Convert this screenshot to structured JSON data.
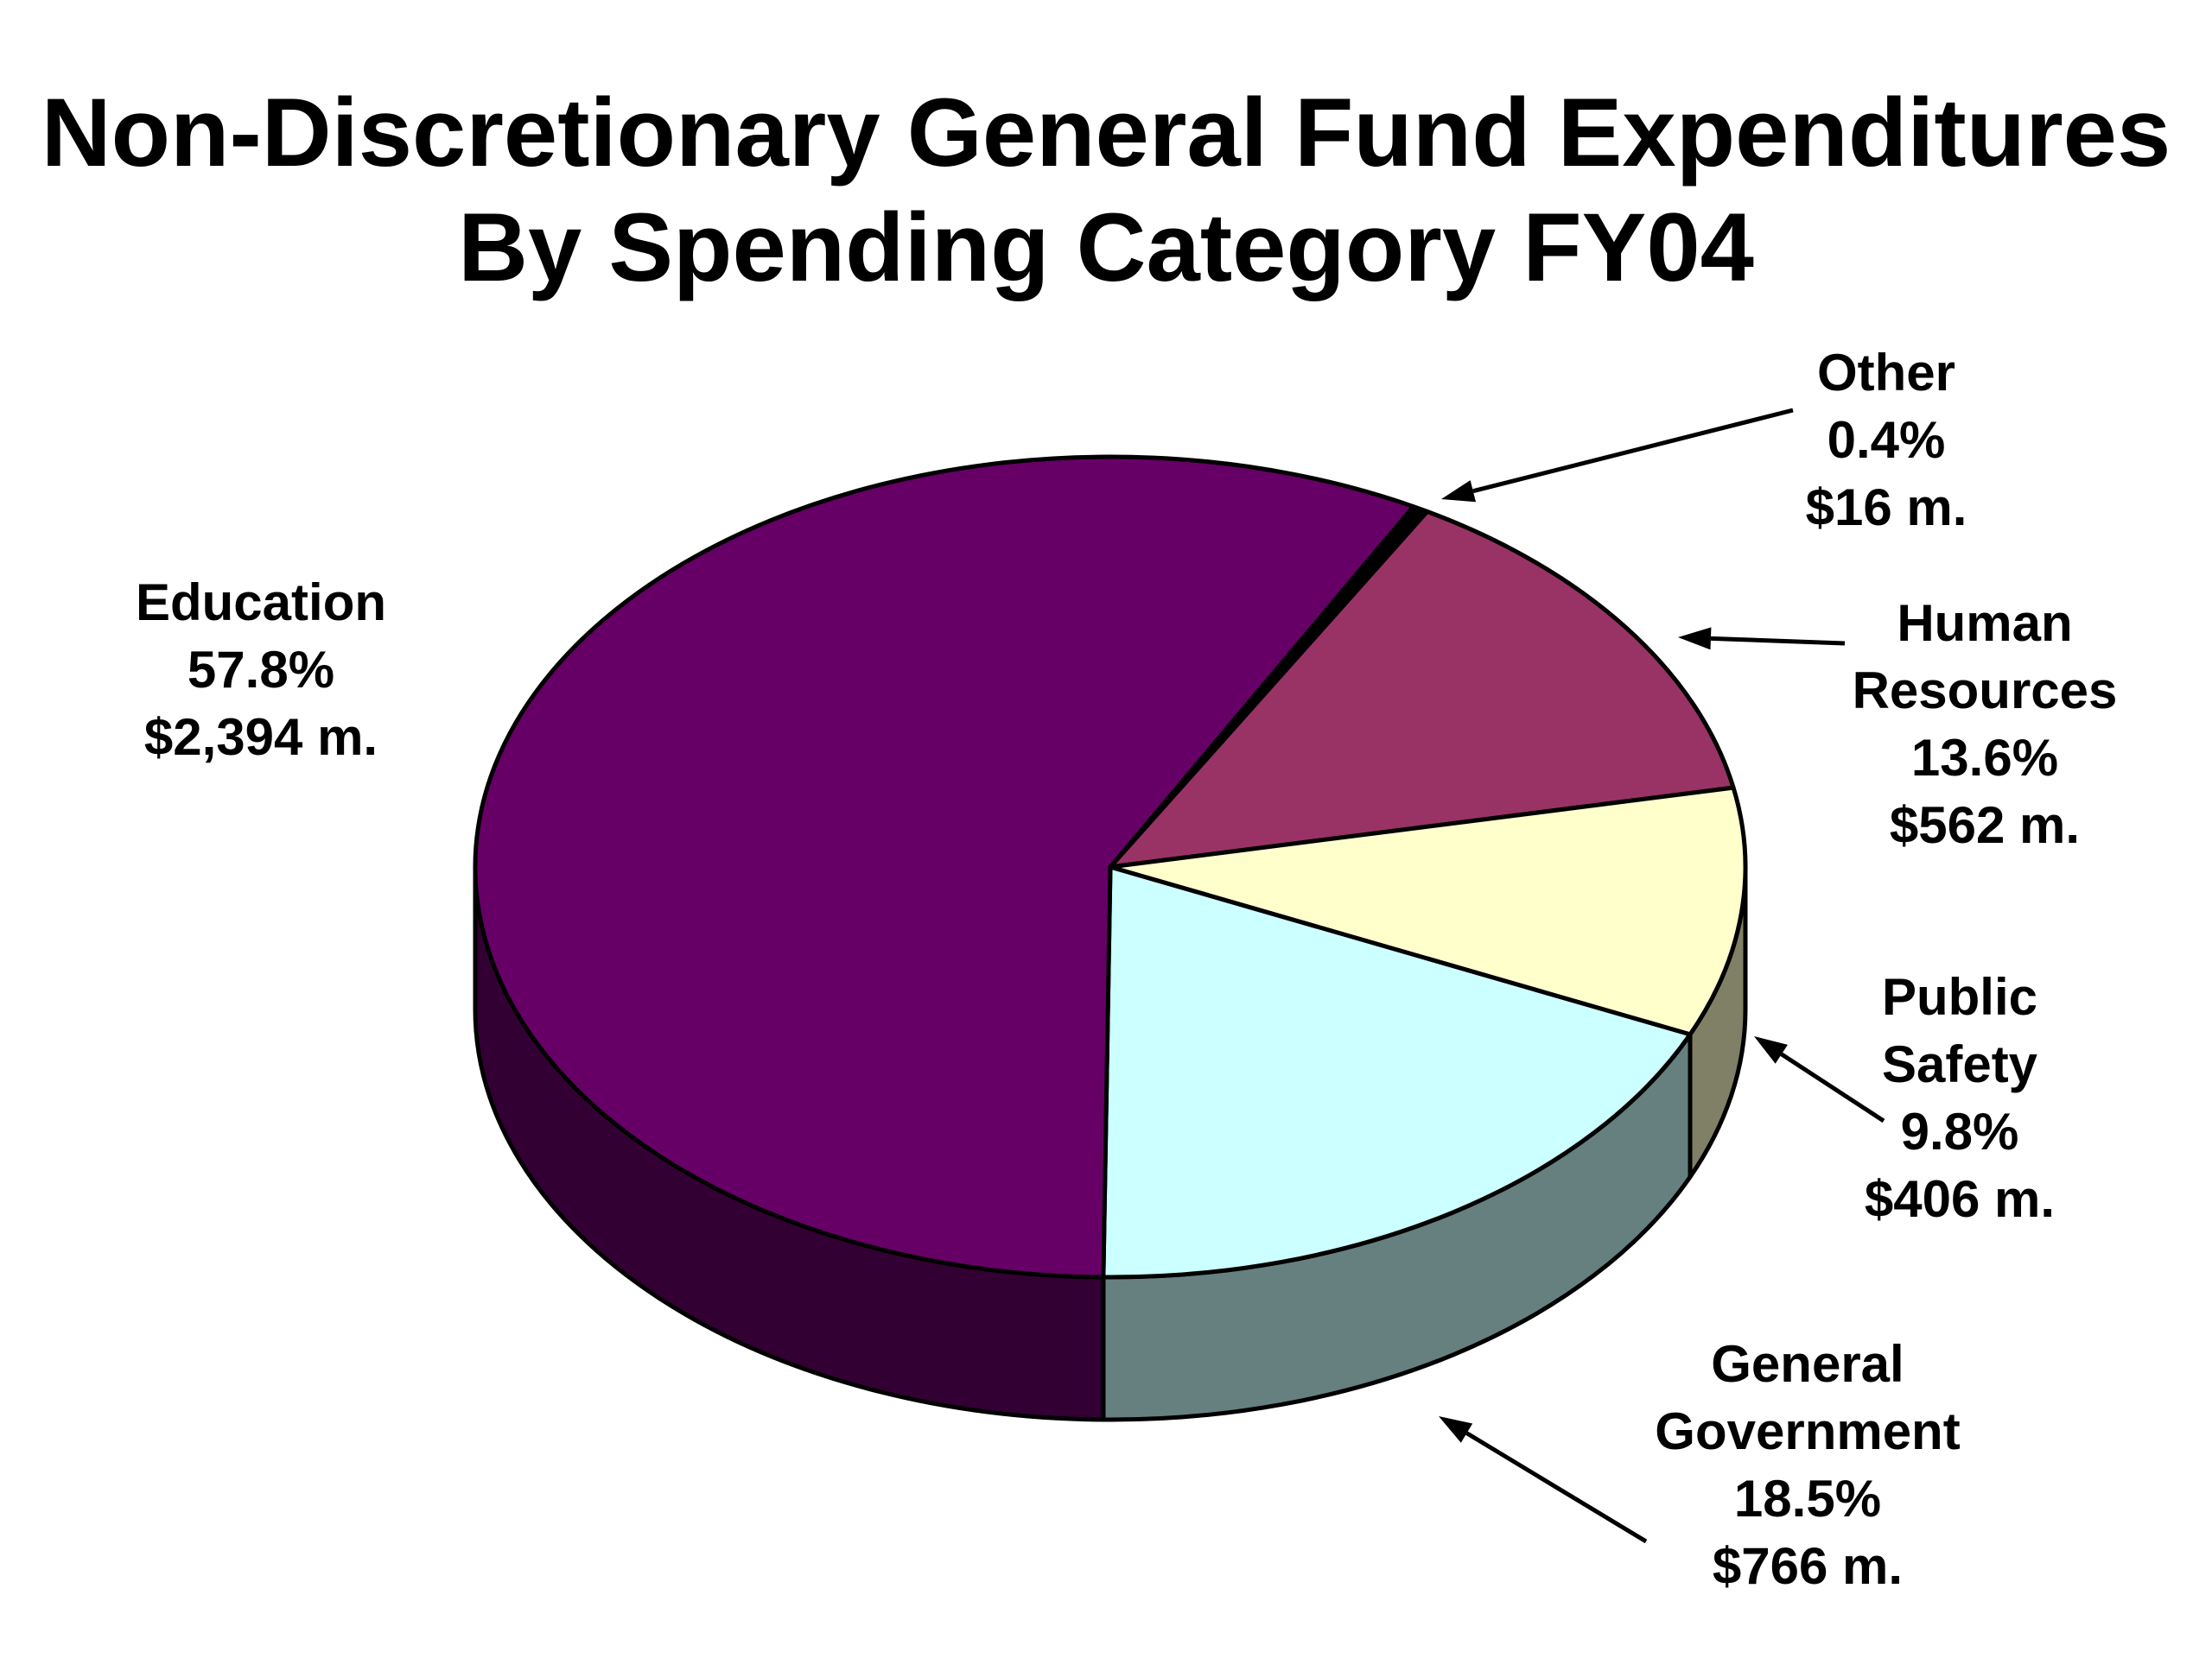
{
  "chart_data": {
    "type": "pie",
    "title": "Non-Discretionary General Fund Expenditures",
    "subtitle": "By Spending Category FY04",
    "slices": [
      {
        "name": "Other",
        "percent": "0.4%",
        "amount": "$16 m.",
        "value": 0.4,
        "color": "#000000",
        "side_color": "#000000"
      },
      {
        "name": "Human Resources",
        "name_lines": [
          "Human",
          "Resources"
        ],
        "percent": "13.6%",
        "amount": "$562 m.",
        "value": 13.6,
        "color": "#993366",
        "side_color": "#4d1a33"
      },
      {
        "name": "Public Safety",
        "name_lines": [
          "Public",
          "Safety"
        ],
        "percent": "9.8%",
        "amount": "$406 m.",
        "value": 9.8,
        "color": "#ffffcc",
        "side_color": "#808066"
      },
      {
        "name": "General Government",
        "name_lines": [
          "General",
          "Government"
        ],
        "percent": "18.5%",
        "amount": "$766 m.",
        "value": 18.5,
        "color": "#ccffff",
        "side_color": "#668080"
      },
      {
        "name": "Education",
        "percent": "57.8%",
        "amount": "$2,394 m.",
        "value": 57.8,
        "color": "#660066",
        "side_color": "#330033"
      }
    ]
  }
}
